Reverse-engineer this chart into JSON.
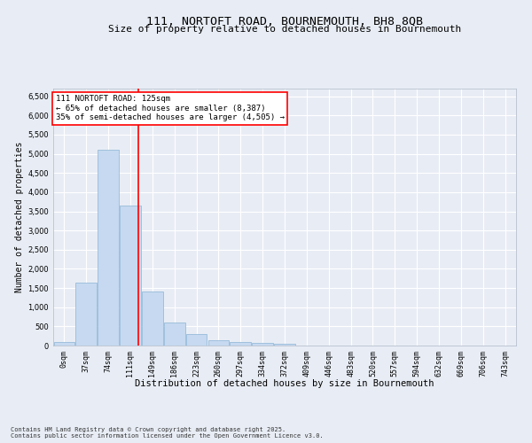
{
  "title": "111, NORTOFT ROAD, BOURNEMOUTH, BH8 8QB",
  "subtitle": "Size of property relative to detached houses in Bournemouth",
  "xlabel": "Distribution of detached houses by size in Bournemouth",
  "ylabel": "Number of detached properties",
  "footer_line1": "Contains HM Land Registry data © Crown copyright and database right 2025.",
  "footer_line2": "Contains public sector information licensed under the Open Government Licence v3.0.",
  "bin_labels": [
    "0sqm",
    "37sqm",
    "74sqm",
    "111sqm",
    "149sqm",
    "186sqm",
    "223sqm",
    "260sqm",
    "297sqm",
    "334sqm",
    "372sqm",
    "409sqm",
    "446sqm",
    "483sqm",
    "520sqm",
    "557sqm",
    "594sqm",
    "632sqm",
    "669sqm",
    "706sqm",
    "743sqm"
  ],
  "bar_values": [
    100,
    1650,
    5100,
    3650,
    1400,
    600,
    300,
    150,
    100,
    75,
    50,
    0,
    0,
    0,
    0,
    0,
    0,
    0,
    0,
    0,
    0
  ],
  "bar_color": "#c6d9f0",
  "bar_edge_color": "#8ab4d4",
  "vline_x": 3.37,
  "vline_color": "red",
  "annotation_text": "111 NORTOFT ROAD: 125sqm\n← 65% of detached houses are smaller (8,387)\n35% of semi-detached houses are larger (4,505) →",
  "annotation_box_color": "white",
  "annotation_box_edge_color": "red",
  "ylim": [
    0,
    6700
  ],
  "yticks": [
    0,
    500,
    1000,
    1500,
    2000,
    2500,
    3000,
    3500,
    4000,
    4500,
    5000,
    5500,
    6000,
    6500
  ],
  "background_color": "#e8edf5",
  "grid_color": "white",
  "title_fontsize": 9.5,
  "subtitle_fontsize": 8,
  "axis_label_fontsize": 7,
  "tick_fontsize": 6,
  "annotation_fontsize": 6.5
}
